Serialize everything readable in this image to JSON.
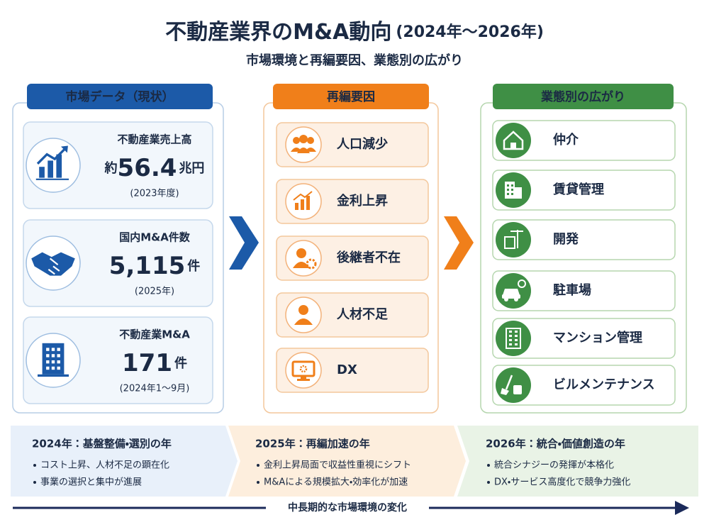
{
  "header": {
    "title": "不動産業界のM&A動向",
    "title_period": "(2024年〜2026年)",
    "subtitle": "市場環境と再編要因、業態別の広がり"
  },
  "columns": [
    {
      "heading": "市場データ（現状）",
      "cards": [
        {
          "label": "不動産業売上高",
          "prefix": "約",
          "value": "56.4",
          "unit": "兆円",
          "note": "(2023年度)"
        },
        {
          "label": "国内M&A件数",
          "value": "5,115",
          "unit": "件",
          "note": "(2025年)"
        },
        {
          "label": "不動産業M&A",
          "value": "171",
          "unit": "件",
          "note": "(2024年1〜9月)"
        }
      ]
    },
    {
      "heading": "再編要因",
      "items": [
        "人口減少",
        "金利上昇",
        "後継者不在",
        "人材不足",
        "DX"
      ]
    },
    {
      "heading": "業態別の広がり",
      "items": [
        "仲介",
        "賃貸管理",
        "開発",
        "駐車場",
        "マンション管理",
        "ビルメンテナンス"
      ]
    }
  ],
  "timeline": [
    {
      "title": "2024年：基盤整備・選別の年",
      "points": [
        "コスト上昇、人材不足の顕在化",
        "事業の選択と集中が進展"
      ]
    },
    {
      "title": "2025年：再編加速の年",
      "points": [
        "金利上昇局面で収益性重視にシフト",
        "M&Aによる規模拡大・効率化が加速"
      ]
    },
    {
      "title": "2026年：統合・価値創造の年",
      "points": [
        "統合シナジーの発揮が本格化",
        "DX・サービス高度化で競争力強化"
      ]
    }
  ],
  "footer": {
    "axis_label": "中長期的な市場環境の変化"
  }
}
